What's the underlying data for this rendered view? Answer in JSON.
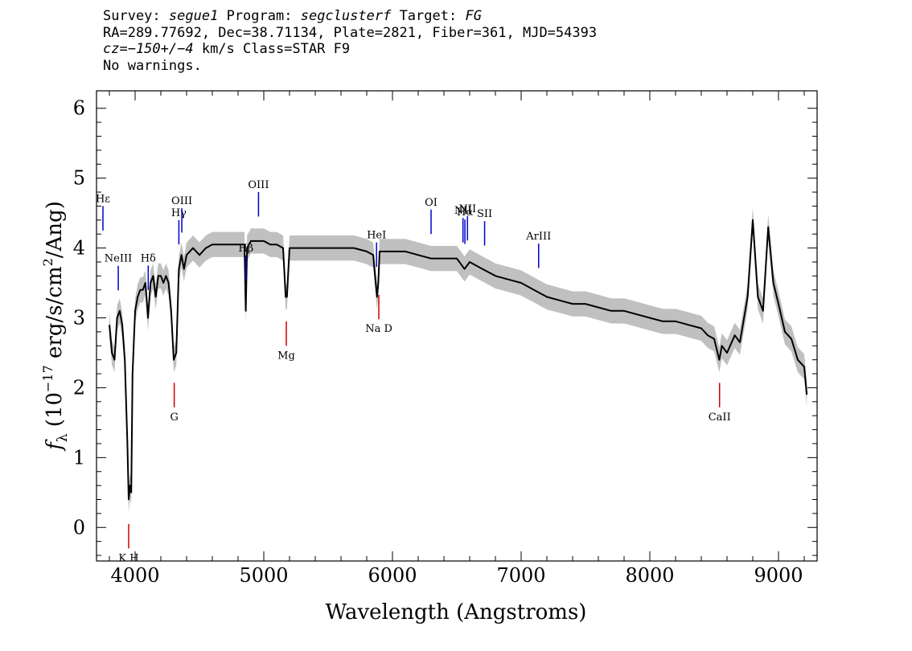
{
  "header": {
    "survey_label": "Survey:",
    "survey": "segue1",
    "program_label": "Program:",
    "program": "segclusterf",
    "target_label": "Target:",
    "target": "FG",
    "line2": "RA=289.77692, Dec=38.71134, Plate=2821, Fiber=361, MJD=54393",
    "cz": "cz=−150+/−4",
    "cz_unit_class": " km/s Class=STAR F9",
    "line4": "No warnings."
  },
  "chart_data": {
    "type": "line",
    "xlabel": "Wavelength (Angstroms)",
    "ylabel_prefix": "f",
    "ylabel_sub": "λ",
    "ylabel_rest": " (10",
    "ylabel_sup": "−17",
    "ylabel_rest2": " erg/s/cm",
    "ylabel_sup2": "2",
    "ylabel_rest3": "/Ang)",
    "xlim": [
      3700,
      9300
    ],
    "ylim": [
      -0.48,
      6.25
    ],
    "xticks": [
      4000,
      5000,
      6000,
      7000,
      8000,
      9000
    ],
    "yticks": [
      0,
      1,
      2,
      3,
      4,
      5,
      6
    ],
    "colors": {
      "flux": "#000000",
      "error_band": "#c0c0c0",
      "emission": "#0000cc",
      "absorption": "#cc0000"
    },
    "series": [
      {
        "x": [
          3800,
          3820,
          3840,
          3860,
          3880,
          3900,
          3920,
          3940,
          3950,
          3960,
          3970,
          3980,
          4000,
          4020,
          4040,
          4060,
          4080,
          4100,
          4120,
          4140,
          4160,
          4180,
          4200,
          4220,
          4240,
          4260,
          4280,
          4300,
          4320,
          4340,
          4360,
          4380,
          4400,
          4450,
          4500,
          4550,
          4600,
          4650,
          4700,
          4750,
          4800,
          4850,
          4860,
          4870,
          4900,
          4950,
          5000,
          5050,
          5100,
          5150,
          5170,
          5180,
          5200,
          5250,
          5300,
          5400,
          5500,
          5600,
          5700,
          5800,
          5850,
          5880,
          5890,
          5900,
          5950,
          6000,
          6100,
          6200,
          6300,
          6400,
          6500,
          6560,
          6600,
          6700,
          6800,
          6900,
          7000,
          7100,
          7200,
          7300,
          7400,
          7500,
          7600,
          7700,
          7800,
          7900,
          8000,
          8100,
          8200,
          8300,
          8400,
          8450,
          8500,
          8540,
          8560,
          8600,
          8660,
          8700,
          8760,
          8800,
          8840,
          8880,
          8920,
          8960,
          9000,
          9050,
          9100,
          9150,
          9200,
          9220
        ],
        "y": [
          2.9,
          2.5,
          2.4,
          3.0,
          3.1,
          2.9,
          2.4,
          1.2,
          0.4,
          0.6,
          0.5,
          2.2,
          3.1,
          3.3,
          3.4,
          3.4,
          3.5,
          3.0,
          3.5,
          3.6,
          3.3,
          3.6,
          3.6,
          3.5,
          3.6,
          3.5,
          3.1,
          2.4,
          2.5,
          3.7,
          3.9,
          3.7,
          3.9,
          4.0,
          3.9,
          4.0,
          4.05,
          4.05,
          4.05,
          4.05,
          4.05,
          4.05,
          3.1,
          4.0,
          4.1,
          4.1,
          4.1,
          4.05,
          4.05,
          4.0,
          3.3,
          3.3,
          4.0,
          4.0,
          4.0,
          4.0,
          4.0,
          4.0,
          4.0,
          3.95,
          3.9,
          3.3,
          3.5,
          3.95,
          3.95,
          3.95,
          3.95,
          3.9,
          3.85,
          3.85,
          3.85,
          3.7,
          3.8,
          3.7,
          3.6,
          3.55,
          3.5,
          3.4,
          3.3,
          3.25,
          3.2,
          3.2,
          3.15,
          3.1,
          3.1,
          3.05,
          3.0,
          2.95,
          2.95,
          2.9,
          2.85,
          2.75,
          2.7,
          2.4,
          2.6,
          2.5,
          2.75,
          2.65,
          3.3,
          4.4,
          3.3,
          3.1,
          4.3,
          3.5,
          3.2,
          2.8,
          2.7,
          2.4,
          2.3,
          1.9
        ]
      }
    ],
    "annotations": [
      {
        "label": "Hε",
        "x": 3750,
        "kind": "emission"
      },
      {
        "label": "NeIII",
        "x": 3869,
        "kind": "emission"
      },
      {
        "label": "Hδ",
        "x": 4102,
        "kind": "emission"
      },
      {
        "label": "Hγ",
        "x": 4340,
        "kind": "emission"
      },
      {
        "label": "OIII",
        "x": 4363,
        "kind": "emission"
      },
      {
        "label": "Hβ",
        "x": 4861,
        "kind": "emission"
      },
      {
        "label": "OIII",
        "x": 4959,
        "kind": "emission"
      },
      {
        "label": "HeI",
        "x": 5876,
        "kind": "emission"
      },
      {
        "label": "OI",
        "x": 6300,
        "kind": "emission"
      },
      {
        "label": "NII",
        "x": 6548,
        "kind": "emission"
      },
      {
        "label": "Hα",
        "x": 6563,
        "kind": "emission"
      },
      {
        "label": "NII",
        "x": 6583,
        "kind": "emission"
      },
      {
        "label": "SII",
        "x": 6716,
        "kind": "emission"
      },
      {
        "label": "ArIII",
        "x": 7136,
        "kind": "emission"
      },
      {
        "label": "K H",
        "x": 3950,
        "kind": "absorption"
      },
      {
        "label": "G",
        "x": 4304,
        "kind": "absorption"
      },
      {
        "label": "Mg",
        "x": 5175,
        "kind": "absorption"
      },
      {
        "label": "Na D",
        "x": 5894,
        "kind": "absorption"
      },
      {
        "label": "CaII",
        "x": 8542,
        "kind": "absorption"
      }
    ]
  }
}
